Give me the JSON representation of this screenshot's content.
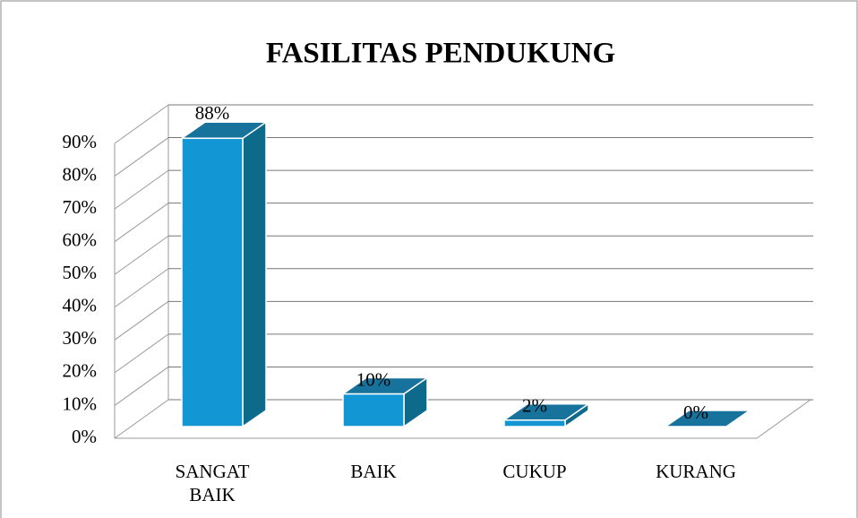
{
  "chart_data": {
    "type": "bar",
    "title": "FASILITAS PENDUKUNG",
    "categories": [
      "SANGAT BAIK",
      "BAIK",
      "CUKUP",
      "KURANG"
    ],
    "values": [
      88,
      10,
      2,
      0
    ],
    "value_labels": [
      "88%",
      "10%",
      "2%",
      "0%"
    ],
    "color": "#1296d4",
    "ylim": [
      0,
      90
    ],
    "yticks": [
      {
        "value": 0,
        "label": "0%"
      },
      {
        "value": 10,
        "label": "10%"
      },
      {
        "value": 20,
        "label": "20%"
      },
      {
        "value": 30,
        "label": "30%"
      },
      {
        "value": 40,
        "label": "40%"
      },
      {
        "value": 50,
        "label": "50%"
      },
      {
        "value": 60,
        "label": "60%"
      },
      {
        "value": 70,
        "label": "70%"
      },
      {
        "value": 80,
        "label": "80%"
      },
      {
        "value": 90,
        "label": "90%"
      }
    ],
    "grid": true
  }
}
